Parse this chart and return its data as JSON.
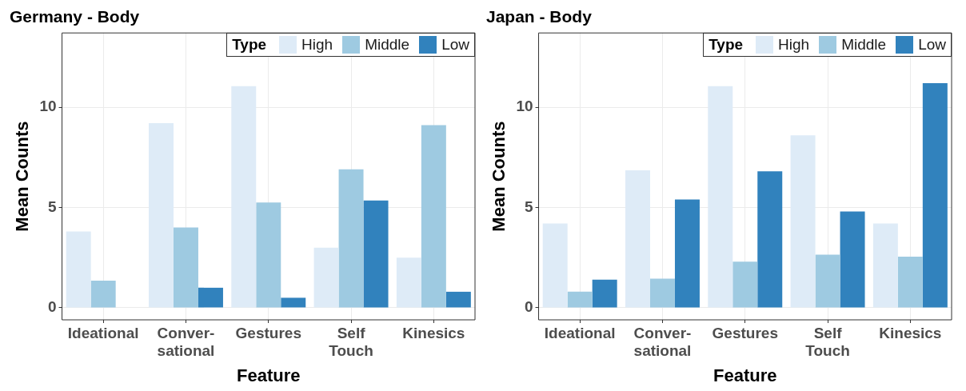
{
  "chart_data": [
    {
      "type": "bar",
      "title": "Germany - Body",
      "xlabel": "Feature",
      "ylabel": "Mean Counts",
      "legend_title": "Type",
      "legend": "top right",
      "grid": true,
      "categories": [
        "Ideational",
        "Conver-\nsational",
        "Gestures",
        "Self\nTouch",
        "Kinesics"
      ],
      "series": [
        {
          "name": "High",
          "color": "#deebf7",
          "values": [
            3.8,
            9.2,
            11.05,
            3.0,
            2.5
          ]
        },
        {
          "name": "Middle",
          "color": "#9ecae1",
          "values": [
            1.35,
            4.0,
            5.25,
            6.9,
            9.1
          ]
        },
        {
          "name": "Low",
          "color": "#3182bd",
          "values": [
            0,
            1.0,
            0.5,
            5.35,
            0.8
          ]
        }
      ],
      "ylim": [
        -0.6,
        13.7
      ],
      "yticks": [
        0,
        5,
        10
      ]
    },
    {
      "type": "bar",
      "title": "Japan - Body",
      "xlabel": "Feature",
      "ylabel": "Mean Counts",
      "legend_title": "Type",
      "legend": "top right",
      "grid": true,
      "categories": [
        "Ideational",
        "Conver-\nsational",
        "Gestures",
        "Self\nTouch",
        "Kinesics"
      ],
      "series": [
        {
          "name": "High",
          "color": "#deebf7",
          "values": [
            4.2,
            6.85,
            11.05,
            8.6,
            4.2
          ]
        },
        {
          "name": "Middle",
          "color": "#9ecae1",
          "values": [
            0.8,
            1.45,
            2.3,
            2.65,
            2.55
          ]
        },
        {
          "name": "Low",
          "color": "#3182bd",
          "values": [
            1.4,
            5.4,
            6.8,
            4.8,
            11.2
          ]
        }
      ],
      "ylim": [
        -0.6,
        13.7
      ],
      "yticks": [
        0,
        5,
        10
      ]
    }
  ]
}
